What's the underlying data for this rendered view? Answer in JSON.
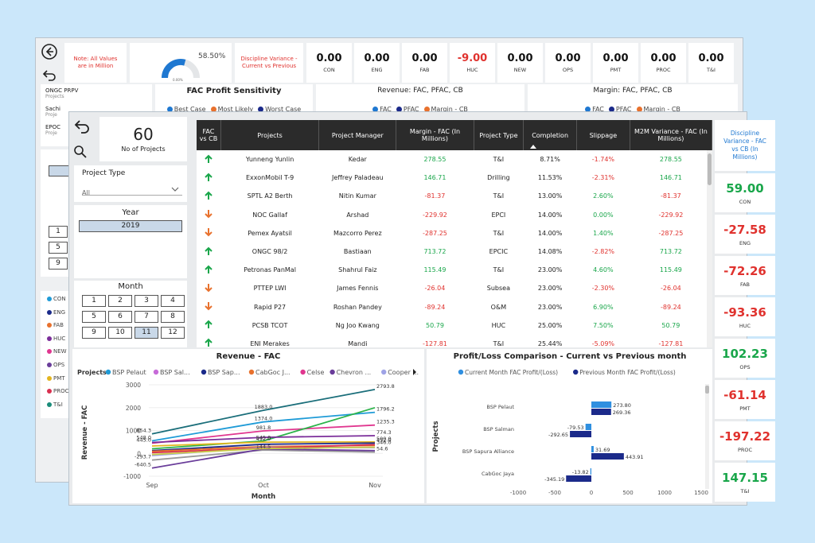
{
  "back": {
    "note": "Note: All Values are in Million",
    "gauge": {
      "value": "58.50%",
      "min": "0.00%",
      "pct": 58.5
    },
    "discipline_title": "Discipline Variance - Current vs Previous",
    "kpis": [
      {
        "value": "0.00",
        "label": "CON",
        "color": "#111111"
      },
      {
        "value": "0.00",
        "label": "ENG",
        "color": "#111111"
      },
      {
        "value": "0.00",
        "label": "FAB",
        "color": "#111111"
      },
      {
        "value": "-9.00",
        "label": "HUC",
        "color": "#e0322e"
      },
      {
        "value": "0.00",
        "label": "NEW",
        "color": "#111111"
      },
      {
        "value": "0.00",
        "label": "OPS",
        "color": "#111111"
      },
      {
        "value": "0.00",
        "label": "PMT",
        "color": "#111111"
      },
      {
        "value": "0.00",
        "label": "PROC",
        "color": "#111111"
      },
      {
        "value": "0.00",
        "label": "T&I",
        "color": "#111111"
      }
    ],
    "list": [
      {
        "name": "ONGC PRPV",
        "sub": "Projects"
      },
      {
        "name": "Sachi",
        "sub": "Proje"
      },
      {
        "name": "EPOC",
        "sub": "Proje"
      }
    ],
    "fac_profit_title": "FAC Profit Sensitivity",
    "fac_profit_legend": [
      {
        "label": "Best Case",
        "color": "#1f78d1"
      },
      {
        "label": "Most Likely",
        "color": "#e8712d"
      },
      {
        "label": "Worst Case",
        "color": "#1b2a8a"
      }
    ],
    "revenue_title": "Revenue: FAC, PFAC, CB",
    "margin_title": "Margin: FAC, PFAC, CB",
    "fpc_legend": [
      {
        "label": "FAC",
        "color": "#1f78d1"
      },
      {
        "label": "PFAC",
        "color": "#1b2a8a"
      },
      {
        "label": "Margin - CB",
        "color": "#e8712d"
      }
    ],
    "numbers": [
      "1",
      "5",
      "9"
    ],
    "disciplines": [
      {
        "label": "CON",
        "color": "#1f9bd7"
      },
      {
        "label": "ENG",
        "color": "#1b2a8a"
      },
      {
        "label": "FAB",
        "color": "#e8712d"
      },
      {
        "label": "HUC",
        "color": "#7b2d9a"
      },
      {
        "label": "NEW",
        "color": "#e0368f"
      },
      {
        "label": "OPS",
        "color": "#6a3d9a"
      },
      {
        "label": "PMT",
        "color": "#e3b51f"
      },
      {
        "label": "PROC",
        "color": "#d9304f"
      },
      {
        "label": "T&I",
        "color": "#1a8c7a"
      }
    ]
  },
  "filters": {
    "count_value": "60",
    "count_label": "No of Projects",
    "project_type_label": "Project Type",
    "project_type_value": "All",
    "year_label": "Year",
    "year_value": "2019",
    "month_label": "Month",
    "months": [
      "1",
      "2",
      "3",
      "4",
      "5",
      "6",
      "7",
      "8",
      "9",
      "10",
      "11",
      "12"
    ],
    "month_selected": "11"
  },
  "table": {
    "headers": [
      "FAC vs CB",
      "Projects",
      "Project Manager",
      "Margin - FAC (In Millions)",
      "Project Type",
      "Completion",
      "Slippage",
      "M2M Variance - FAC (In Millions)"
    ],
    "rows": [
      {
        "arrow": "up",
        "project": "Yunneng Yunlin",
        "pm": "Kedar",
        "margin": "278.55",
        "type": "T&I",
        "completion": "8.71%",
        "slippage": "-1.74%",
        "m2m": "278.55"
      },
      {
        "arrow": "up",
        "project": "ExxonMobil T-9",
        "pm": "Jeffrey Paladeau",
        "margin": "146.71",
        "type": "Drilling",
        "completion": "11.53%",
        "slippage": "-2.31%",
        "m2m": "146.71"
      },
      {
        "arrow": "up",
        "project": "SPTL A2 Berth",
        "pm": "Nitin Kumar",
        "margin": "-81.37",
        "type": "T&I",
        "completion": "13.00%",
        "slippage": "2.60%",
        "m2m": "-81.37"
      },
      {
        "arrow": "down",
        "project": "NOC Gallaf",
        "pm": "Arshad",
        "margin": "-229.92",
        "type": "EPCI",
        "completion": "14.00%",
        "slippage": "0.00%",
        "m2m": "-229.92"
      },
      {
        "arrow": "down",
        "project": "Pemex Ayatsil",
        "pm": "Mazcorro Perez",
        "margin": "-287.25",
        "type": "T&I",
        "completion": "14.00%",
        "slippage": "1.40%",
        "m2m": "-287.25"
      },
      {
        "arrow": "up",
        "project": "ONGC 98/2",
        "pm": "Bastiaan",
        "margin": "713.72",
        "type": "EPCIC",
        "completion": "14.08%",
        "slippage": "-2.82%",
        "m2m": "713.72"
      },
      {
        "arrow": "up",
        "project": "Petronas PanMal",
        "pm": "Shahrul Faiz",
        "margin": "115.49",
        "type": "T&I",
        "completion": "23.00%",
        "slippage": "4.60%",
        "m2m": "115.49"
      },
      {
        "arrow": "down",
        "project": "PTTEP LWI",
        "pm": "James Fennis",
        "margin": "-26.04",
        "type": "Subsea",
        "completion": "23.00%",
        "slippage": "-2.30%",
        "m2m": "-26.04"
      },
      {
        "arrow": "down",
        "project": "Rapid P27",
        "pm": "Roshan Pandey",
        "margin": "-89.24",
        "type": "O&M",
        "completion": "23.00%",
        "slippage": "6.90%",
        "m2m": "-89.24"
      },
      {
        "arrow": "up",
        "project": "PCSB TCOT",
        "pm": "Ng Joo Kwang",
        "margin": "50.79",
        "type": "HUC",
        "completion": "25.00%",
        "slippage": "7.50%",
        "m2m": "50.79"
      },
      {
        "arrow": "up",
        "project": "ENI Merakes",
        "pm": "Mandi",
        "margin": "-127.81",
        "type": "T&I",
        "completion": "25.44%",
        "slippage": "-5.09%",
        "m2m": "-127.81"
      }
    ]
  },
  "right_panel": {
    "title": "Discipline Variance - FAC vs CB (In Millions)",
    "items": [
      {
        "value": "59.00",
        "label": "CON",
        "color": "#19a64a"
      },
      {
        "value": "-27.58",
        "label": "ENG",
        "color": "#e0322e"
      },
      {
        "value": "-72.26",
        "label": "FAB",
        "color": "#e0322e"
      },
      {
        "value": "-93.36",
        "label": "HUC",
        "color": "#e0322e"
      },
      {
        "value": "102.23",
        "label": "OPS",
        "color": "#19a64a"
      },
      {
        "value": "-61.14",
        "label": "PMT",
        "color": "#e0322e"
      },
      {
        "value": "-197.22",
        "label": "PROC",
        "color": "#e0322e"
      },
      {
        "value": "147.15",
        "label": "T&I",
        "color": "#19a64a"
      }
    ]
  },
  "chart_data": [
    {
      "type": "line",
      "title": "Revenue - FAC",
      "xlabel": "Month",
      "ylabel": "Revenue - FAC",
      "legend_title": "Projects",
      "legend": [
        {
          "label": "BSP Pelaut",
          "color": "#1f9bd7"
        },
        {
          "label": "BSP Sal...",
          "color": "#c76bd8"
        },
        {
          "label": "BSP Sap...",
          "color": "#1b2a8a"
        },
        {
          "label": "CabGoc J...",
          "color": "#e8712d"
        },
        {
          "label": "Celse",
          "color": "#e0368f"
        },
        {
          "label": "Chevron ...",
          "color": "#6a3d9a"
        },
        {
          "label": "Cooper ...",
          "color": "#9fa3e6"
        }
      ],
      "categories": [
        "Sep",
        "Oct",
        "Nov"
      ],
      "ylim": [
        -1000,
        3000
      ],
      "yticks": [
        3000,
        2000,
        1000,
        0,
        -1000
      ],
      "series": [
        {
          "color": "#1a6e7a",
          "values": [
            854.3,
            1883,
            2793.8
          ]
        },
        {
          "color": "#1f9bd7",
          "values": [
            548,
            1374,
            1796.2
          ]
        },
        {
          "color": "#e0368f",
          "values": [
            445,
            981.8,
            1235.3
          ]
        },
        {
          "color": "#2cb34a",
          "values": [
            200,
            545,
            2000
          ]
        },
        {
          "color": "#7b2d9a",
          "values": [
            480,
            700,
            774.3
          ]
        },
        {
          "color": "#e3b51f",
          "values": [
            320,
            492,
            500
          ]
        },
        {
          "color": "#1b2a8a",
          "values": [
            120,
            400,
            452
          ]
        },
        {
          "color": "#e8712d",
          "values": [
            90,
            300,
            346
          ]
        },
        {
          "color": "#9fa3e6",
          "values": [
            -100,
            270,
            250
          ]
        },
        {
          "color": "#9a9a9a",
          "values": [
            -293.7,
            144.5,
            54.6
          ]
        },
        {
          "color": "#6a3d9a",
          "values": [
            -640.5,
            194,
            120
          ]
        },
        {
          "color": "#d9304f",
          "values": [
            30,
            230,
            380
          ]
        },
        {
          "color": "#c9cc4a",
          "values": [
            -50,
            210,
            270
          ]
        }
      ],
      "data_labels": [
        {
          "text": "854.3",
          "cat": 0,
          "value": 854.3
        },
        {
          "text": "548.0",
          "cat": 0,
          "value": 548
        },
        {
          "text": "445.0",
          "cat": 0,
          "value": 445
        },
        {
          "text": "-293.7",
          "cat": 0,
          "value": -293.7
        },
        {
          "text": "-640.5",
          "cat": 0,
          "value": -640.5
        },
        {
          "text": "1883.0",
          "cat": 1,
          "value": 1883
        },
        {
          "text": "1374.0",
          "cat": 1,
          "value": 1374
        },
        {
          "text": "981.8",
          "cat": 1,
          "value": 981.8
        },
        {
          "text": "545.0",
          "cat": 1,
          "value": 545
        },
        {
          "text": "492.0",
          "cat": 1,
          "value": 492
        },
        {
          "text": "144.5",
          "cat": 1,
          "value": 144.5
        },
        {
          "text": "2793.8",
          "cat": 2,
          "value": 2793.8
        },
        {
          "text": "1796.2",
          "cat": 2,
          "value": 1796.2
        },
        {
          "text": "1235.3",
          "cat": 2,
          "value": 1235.3
        },
        {
          "text": "774.3",
          "cat": 2,
          "value": 774.3
        },
        {
          "text": "500.0",
          "cat": 2,
          "value": 500
        },
        {
          "text": "452.0",
          "cat": 2,
          "value": 452
        },
        {
          "text": "346.0",
          "cat": 2,
          "value": 346
        },
        {
          "text": "54.6",
          "cat": 2,
          "value": 54.6
        }
      ]
    },
    {
      "type": "bar",
      "title": "Profit/Loss Comparison - Current vs Previous month",
      "ylabel": "Projects",
      "legend": [
        {
          "label": "Current Month FAC Profit/(Loss)",
          "color": "#2f8fe0"
        },
        {
          "label": "Previous Month FAC Profit/(Loss)",
          "color": "#1b2a8a"
        }
      ],
      "categories": [
        "BSP Pelaut",
        "BSP Salman",
        "BSP Sapura Alliance",
        "CabGoc Jaya"
      ],
      "series": [
        {
          "name": "Current Month FAC Profit/(Loss)",
          "values": [
            273.8,
            -79.53,
            31.69,
            -13.82
          ]
        },
        {
          "name": "Previous Month FAC Profit/(Loss)",
          "values": [
            269.36,
            -292.65,
            443.91,
            -345.19
          ]
        }
      ],
      "xlim": [
        -1000,
        1500
      ],
      "xticks": [
        "-1000",
        "-500",
        "0",
        "500",
        "1000",
        "1500"
      ]
    }
  ]
}
